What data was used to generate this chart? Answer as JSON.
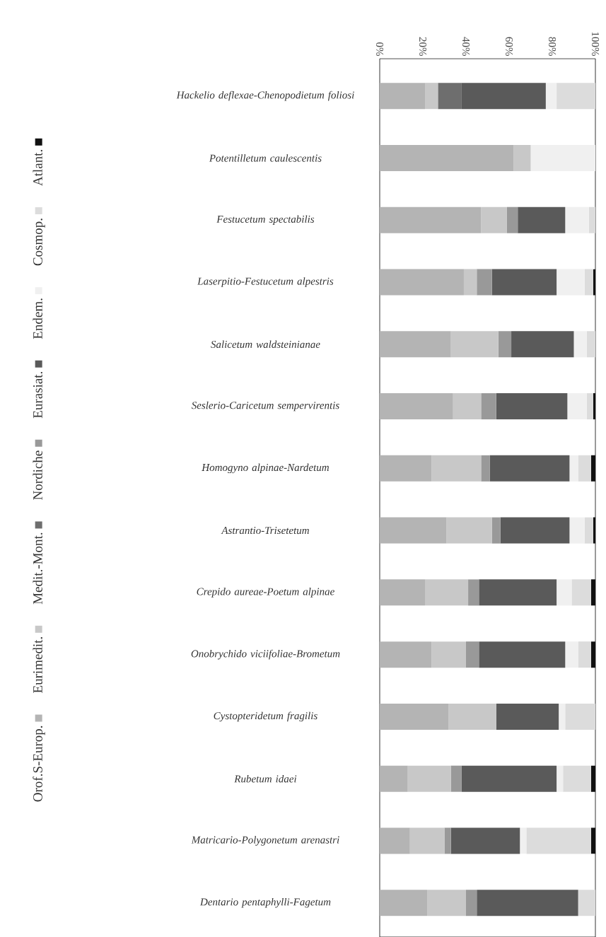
{
  "chart_data": {
    "type": "bar",
    "orientation": "horizontal",
    "stacked": true,
    "categories": [
      "Hackelio deflexae-Chenopodietum foliosi",
      "Potentilletum caulescentis",
      "Festucetum spectabilis",
      "Laserpitio-Festucetum alpestris",
      "Salicetum waldsteinianae",
      "Seslerio-Caricetum sempervirentis",
      "Homogyno alpinae-Nardetum",
      "Astrantio-Trisetetum",
      "Crepido aureae-Poetum alpinae",
      "Onobrychido viciifoliae-Brometum",
      "Cystopteridetum fragilis",
      "Rubetum idaei",
      "Matricario-Polygonetum arenastri",
      "Dentario pentaphylli-Fagetum"
    ],
    "series": [
      {
        "name": "Orof.S-Europ.",
        "color": "#b4b4b4",
        "values": [
          21,
          62,
          47,
          39,
          33,
          34,
          24,
          31,
          21,
          24,
          32,
          13,
          14,
          22
        ]
      },
      {
        "name": "Eurimedit.",
        "color": "#c8c8c8",
        "values": [
          6,
          8,
          12,
          6,
          22,
          13,
          23,
          21,
          20,
          16,
          22,
          20,
          16,
          18
        ]
      },
      {
        "name": "Medit.-Mont.",
        "color": "#6e6e6e",
        "values": [
          11,
          0,
          0,
          0,
          0,
          0,
          0,
          0,
          0,
          0,
          0,
          0,
          0,
          0
        ]
      },
      {
        "name": "Nordiche",
        "color": "#999999",
        "values": [
          0,
          0,
          5,
          7,
          6,
          7,
          4,
          4,
          5,
          6,
          0,
          5,
          3,
          5
        ]
      },
      {
        "name": "Eurasiat.",
        "color": "#5a5a5a",
        "values": [
          39,
          0,
          22,
          30,
          29,
          33,
          37,
          32,
          36,
          40,
          29,
          44,
          32,
          47
        ]
      },
      {
        "name": "Endem.",
        "color": "#f0f0f0",
        "values": [
          5,
          30,
          11,
          13,
          6,
          9,
          4,
          7,
          7,
          6,
          3,
          3,
          3,
          0
        ]
      },
      {
        "name": "Cosmop.",
        "color": "#dcdcdc",
        "values": [
          18,
          0,
          3,
          4,
          4,
          3,
          6,
          4,
          9,
          6,
          14,
          13,
          30,
          8
        ]
      },
      {
        "name": "Atlant.",
        "color": "#111111",
        "values": [
          0,
          0,
          0,
          1,
          0,
          1,
          2,
          1,
          2,
          2,
          0,
          2,
          2,
          0
        ]
      }
    ],
    "xlim": [
      0,
      100
    ],
    "xticks": [
      {
        "value": 0,
        "label": "0%"
      },
      {
        "value": 20,
        "label": "20%"
      },
      {
        "value": 40,
        "label": "40%"
      },
      {
        "value": 60,
        "label": "60%"
      },
      {
        "value": 80,
        "label": "80%"
      },
      {
        "value": 100,
        "label": "100%"
      }
    ],
    "legend": "left"
  }
}
